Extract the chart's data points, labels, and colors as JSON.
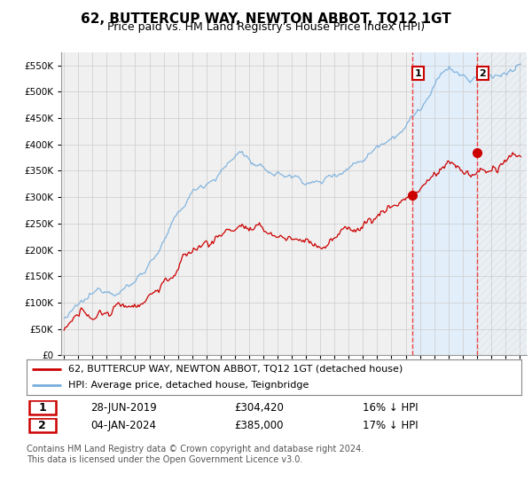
{
  "title": "62, BUTTERCUP WAY, NEWTON ABBOT, TQ12 1GT",
  "subtitle": "Price paid vs. HM Land Registry's House Price Index (HPI)",
  "ytick_values": [
    0,
    50000,
    100000,
    150000,
    200000,
    250000,
    300000,
    350000,
    400000,
    450000,
    500000,
    550000
  ],
  "ylim": [
    0,
    575000
  ],
  "xlim_start": 1994.8,
  "xlim_end": 2027.5,
  "xtick_years": [
    1995,
    1996,
    1997,
    1998,
    1999,
    2000,
    2001,
    2002,
    2003,
    2004,
    2005,
    2006,
    2007,
    2008,
    2009,
    2010,
    2011,
    2012,
    2013,
    2014,
    2015,
    2016,
    2017,
    2018,
    2019,
    2020,
    2021,
    2022,
    2023,
    2024,
    2025,
    2026,
    2027
  ],
  "hpi_color": "#77AEDD",
  "price_color": "#CC0000",
  "sale1_x": 2019.49,
  "sale1_y": 304420,
  "sale1_label": "1",
  "sale1_date": "28-JUN-2019",
  "sale1_price": "£304,420",
  "sale1_hpi_text": "16% ↓ HPI",
  "sale2_x": 2024.01,
  "sale2_y": 385000,
  "sale2_label": "2",
  "sale2_date": "04-JAN-2024",
  "sale2_price": "£385,000",
  "sale2_hpi_text": "17% ↓ HPI",
  "legend_price_label": "62, BUTTERCUP WAY, NEWTON ABBOT, TQ12 1GT (detached house)",
  "legend_hpi_label": "HPI: Average price, detached house, Teignbridge",
  "footer": "Contains HM Land Registry data © Crown copyright and database right 2024.\nThis data is licensed under the Open Government Licence v3.0.",
  "background_color": "#FFFFFF",
  "plot_bg_color": "#F0F0F0",
  "grid_color": "#CCCCCC",
  "vline_color": "#EE4444",
  "shade_color": "#DDEEFF",
  "title_fontsize": 11,
  "subtitle_fontsize": 9,
  "tick_fontsize": 7.5,
  "legend_fontsize": 8,
  "footer_fontsize": 7
}
